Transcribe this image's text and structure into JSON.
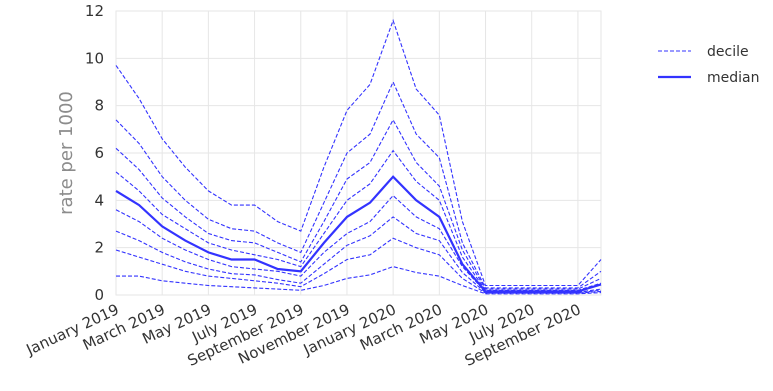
{
  "chart_data": {
    "type": "line",
    "title": "",
    "xlabel": "",
    "ylabel": "rate per 1000",
    "ylim": [
      0,
      12
    ],
    "yticks": [
      "0",
      "2",
      "4",
      "6",
      "8",
      "10",
      "12"
    ],
    "xticks": [
      "January 2019",
      "March 2019",
      "May 2019",
      "July 2019",
      "September 2019",
      "November 2019",
      "January 2020",
      "March 2020",
      "May 2020",
      "July 2020",
      "September 2020"
    ],
    "x": [
      "2019-01",
      "2019-02",
      "2019-03",
      "2019-04",
      "2019-05",
      "2019-06",
      "2019-07",
      "2019-08",
      "2019-09",
      "2019-10",
      "2019-11",
      "2019-12",
      "2020-01",
      "2020-02",
      "2020-03",
      "2020-04",
      "2020-05",
      "2020-06",
      "2020-07",
      "2020-08",
      "2020-09",
      "2020-10"
    ],
    "grid": true,
    "legend_position": "outside-right",
    "legend": [
      {
        "label": "decile",
        "style": "dashed"
      },
      {
        "label": "median",
        "style": "solid"
      }
    ],
    "color": "#3333ff",
    "series": [
      {
        "role": "decile",
        "values": [
          0.8,
          0.8,
          0.6,
          0.5,
          0.4,
          0.35,
          0.3,
          0.25,
          0.2,
          0.4,
          0.7,
          0.85,
          1.2,
          0.95,
          0.8,
          0.4,
          0.05,
          0.05,
          0.05,
          0.05,
          0.05,
          0.1
        ]
      },
      {
        "role": "decile",
        "values": [
          1.9,
          1.6,
          1.3,
          1.0,
          0.8,
          0.7,
          0.6,
          0.5,
          0.35,
          0.9,
          1.5,
          1.7,
          2.4,
          2.0,
          1.7,
          0.7,
          0.08,
          0.08,
          0.08,
          0.08,
          0.08,
          0.15
        ]
      },
      {
        "role": "decile",
        "values": [
          2.7,
          2.3,
          1.8,
          1.4,
          1.1,
          0.9,
          0.85,
          0.65,
          0.5,
          1.3,
          2.1,
          2.5,
          3.3,
          2.6,
          2.3,
          0.95,
          0.1,
          0.1,
          0.1,
          0.1,
          0.1,
          0.2
        ]
      },
      {
        "role": "decile",
        "values": [
          3.6,
          3.1,
          2.4,
          1.9,
          1.5,
          1.2,
          1.1,
          1.0,
          0.8,
          1.8,
          2.6,
          3.1,
          4.2,
          3.3,
          2.8,
          1.2,
          0.12,
          0.12,
          0.12,
          0.12,
          0.12,
          0.25
        ]
      },
      {
        "role": "median",
        "values": [
          4.4,
          3.8,
          2.9,
          2.3,
          1.8,
          1.5,
          1.5,
          1.1,
          1.0,
          2.2,
          3.3,
          3.9,
          5.0,
          4.0,
          3.3,
          1.3,
          0.15,
          0.15,
          0.15,
          0.15,
          0.15,
          0.45
        ]
      },
      {
        "role": "decile",
        "values": [
          5.2,
          4.4,
          3.4,
          2.8,
          2.2,
          1.9,
          1.7,
          1.5,
          1.2,
          2.6,
          4.0,
          4.7,
          6.1,
          4.8,
          4.0,
          1.6,
          0.2,
          0.2,
          0.2,
          0.2,
          0.2,
          0.5
        ]
      },
      {
        "role": "decile",
        "values": [
          6.2,
          5.3,
          4.1,
          3.3,
          2.6,
          2.3,
          2.2,
          1.8,
          1.4,
          3.1,
          4.9,
          5.6,
          7.4,
          5.6,
          4.6,
          1.9,
          0.25,
          0.25,
          0.25,
          0.25,
          0.25,
          0.7
        ]
      },
      {
        "role": "decile",
        "values": [
          7.4,
          6.4,
          5.0,
          4.0,
          3.2,
          2.8,
          2.7,
          2.2,
          1.8,
          3.9,
          6.0,
          6.8,
          9.0,
          6.8,
          5.8,
          2.2,
          0.3,
          0.3,
          0.3,
          0.3,
          0.3,
          1.0
        ]
      },
      {
        "role": "decile",
        "values": [
          9.7,
          8.3,
          6.6,
          5.4,
          4.4,
          3.8,
          3.8,
          3.1,
          2.7,
          5.4,
          7.8,
          8.9,
          11.6,
          8.7,
          7.6,
          3.1,
          0.4,
          0.4,
          0.4,
          0.4,
          0.4,
          1.5
        ]
      }
    ]
  }
}
